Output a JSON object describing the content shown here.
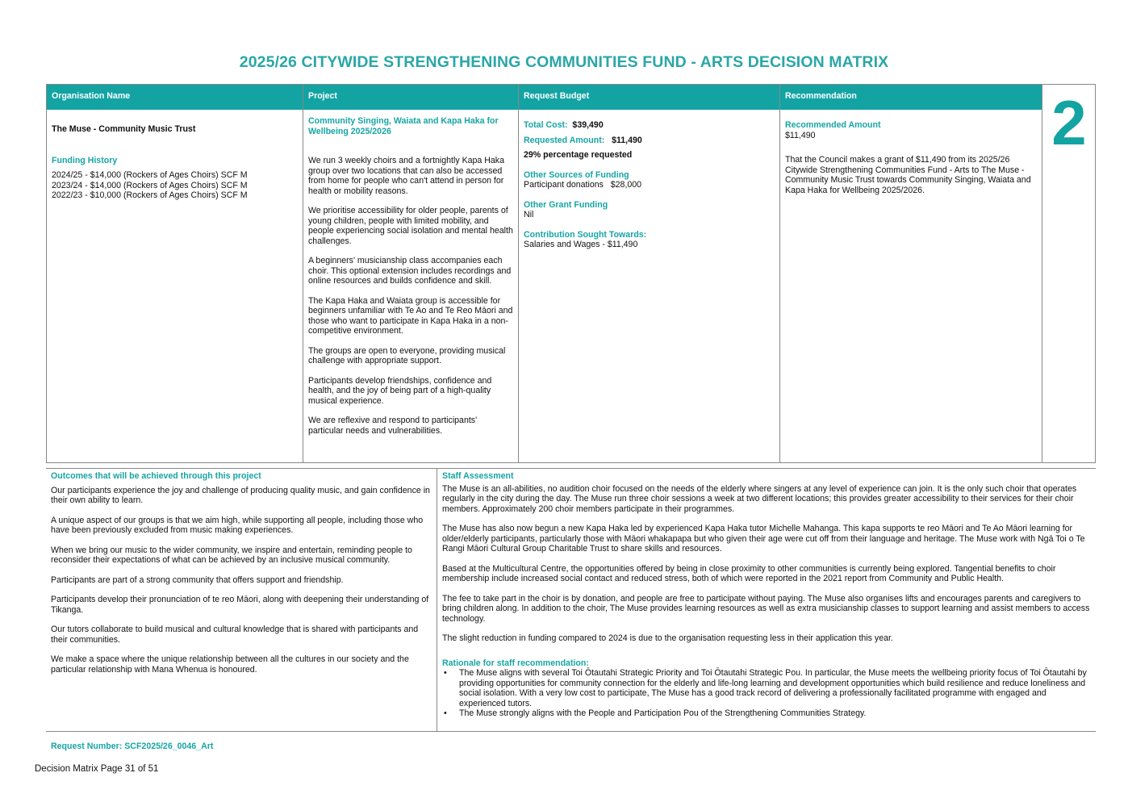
{
  "title": "2025/26 CITYWIDE STRENGTHENING COMMUNITIES FUND - ARTS DECISION MATRIX",
  "headers": {
    "org": "Organisation Name",
    "project": "Project",
    "budget": "Request Budget",
    "recommendation": "Recommendation"
  },
  "priority_number": "2",
  "org": {
    "name": "The Muse - Community Music Trust",
    "funding_history_label": "Funding History",
    "funding_history": [
      "2024/25 - $14,000 (Rockers of Ages Choirs) SCF M",
      "2023/24 - $14,000 (Rockers of Ages Choirs) SCF M",
      "2022/23 - $10,000 (Rockers of Ages Choirs) SCF M"
    ]
  },
  "project": {
    "title": "Community Singing, Waiata and Kapa Haka for Wellbeing 2025/2026",
    "paragraphs": [
      "We run 3 weekly choirs and a fortnightly Kapa Haka group over two locations that can also be accessed from home for people who can't attend in person for health or mobility reasons.",
      "We prioritise accessibility for older people, parents of young children, people with limited mobility, and people experiencing social isolation and mental health challenges.",
      "A beginners' musicianship class accompanies each choir. This optional extension includes recordings and online resources and builds confidence and skill.",
      "The Kapa Haka and Waiata group is accessible for beginners unfamiliar with Te Ao and Te Reo Māori and those who want to participate in Kapa Haka in a non-competitive environment.",
      "The groups are open to everyone, providing musical challenge with appropriate support.",
      "Participants develop friendships, confidence and health, and the joy of being part of a high-quality musical experience.",
      "We are reflexive and respond to participants' particular needs and vulnerabilities."
    ]
  },
  "budget": {
    "total_cost_label": "Total Cost:",
    "total_cost": "$39,490",
    "requested_label": "Requested Amount:",
    "requested": "$11,490",
    "percentage": "29% percentage requested",
    "other_sources_label": "Other Sources of Funding",
    "other_sources": "Participant donations   $28,000",
    "other_grant_label": "Other Grant Funding",
    "other_grant": "Nil",
    "contribution_label": "Contribution Sought Towards:",
    "contribution": "Salaries and Wages - $11,490"
  },
  "recommendation": {
    "amount_label": "Recommended Amount",
    "amount": "$11,490",
    "text": "That the Council makes a grant of $11,490 from its 2025/26 Citywide Strengthening Communities Fund - Arts to The Muse - Community Music Trust towards Community Singing, Waiata and Kapa Haka for Wellbeing 2025/2026."
  },
  "outcomes": {
    "label": "Outcomes that will be achieved through this project",
    "paragraphs": [
      "Our participants experience the joy and challenge of producing quality music, and gain confidence in their own ability to learn.",
      "A unique aspect of our groups is that we aim high, while supporting all people, including those who have been previously excluded from music making experiences.",
      "When we bring our music to the wider community, we inspire and entertain, reminding people to reconsider their expectations of what can be achieved by an inclusive musical community.",
      "Participants are part of a strong community that offers support and friendship.",
      "Participants develop their pronunciation of te reo Māori, along with deepening their understanding of Tikanga.",
      "Our tutors collaborate to build musical and cultural knowledge that is shared with participants and their communities.",
      "We make a space where the unique relationship between all the cultures in our society and the particular relationship with Mana Whenua is honoured."
    ]
  },
  "staff": {
    "label": "Staff Assessment",
    "paragraphs": [
      "The Muse is an all-abilities, no audition choir focused on the needs of the elderly where singers at any level of experience can join. It is the only such choir that operates regularly in the city during the day. The Muse run three choir sessions a week at two different locations; this provides greater accessibility to their services for their choir members. Approximately 200 choir members participate in their programmes.",
      "The Muse has also now begun a new Kapa Haka led by experienced Kapa Haka tutor Michelle Mahanga. This kapa supports te reo Māori and Te Ao Māori learning for older/elderly participants, particularly those with Māori whakapapa but who given their age were cut off from their language and heritage. The Muse work with Ngā Toi o Te Rangi Māori Cultural Group Charitable Trust to share skills and resources.",
      "Based at the Multicultural Centre, the opportunities offered by being in close proximity to other communities is currently being explored. Tangential benefits to choir membership include increased social contact and reduced stress, both of which were reported in the 2021 report from Community and Public Health.",
      "The fee to take part in the choir is by donation, and people are free to participate without paying. The Muse also organises lifts and encourages parents and caregivers to bring children along. In addition to the choir, The Muse provides learning resources as well as extra musicianship classes to support learning and assist members to access technology.",
      "The slight reduction in funding compared to 2024 is due to the organisation requesting less in their application this year."
    ],
    "rationale_label": "Rationale for staff recommendation:",
    "rationale": [
      "The Muse aligns with several Toi Ōtautahi Strategic Priority and Toi Ōtautahi Strategic Pou. In particular, the Muse meets the wellbeing priority focus of Toi Ōtautahi by providing opportunities for community connection for the elderly and life-long learning and development opportunities which build resilience and reduce loneliness and social isolation. With a very low cost to participate, The Muse has a good track record of delivering a professionally facilitated programme with engaged and experienced tutors.",
      "The Muse strongly aligns with the People and Participation Pou of the Strengthening Communities Strategy."
    ]
  },
  "request_number": "Request Number:  SCF2025/26_0046_Art",
  "footer": "Decision Matrix  Page 31 of 51"
}
